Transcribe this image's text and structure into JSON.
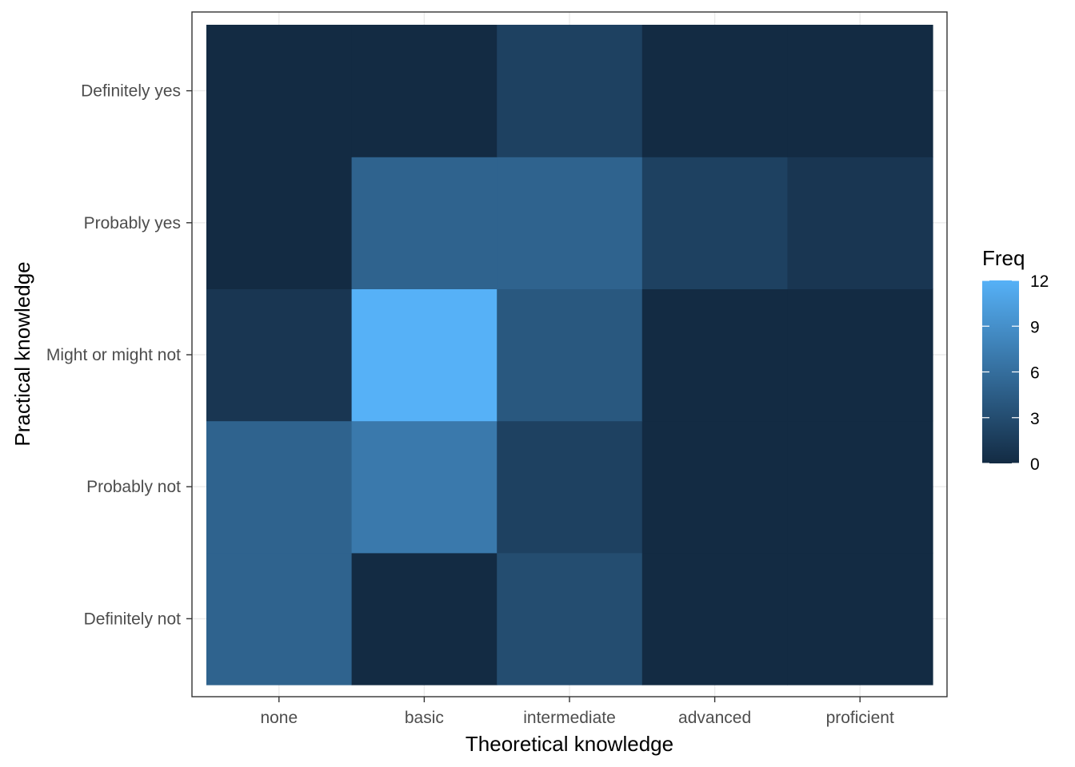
{
  "chart_data": {
    "type": "heatmap",
    "xlabel": "Theoretical knowledge",
    "ylabel": "Practical knowledge",
    "x_categories": [
      "none",
      "basic",
      "intermediate",
      "advanced",
      "proficient"
    ],
    "y_categories": [
      "Definitely not",
      "Probably not",
      "Might or might not",
      "Probably yes",
      "Definitely yes"
    ],
    "values": [
      [
        5,
        0,
        3,
        0,
        0
      ],
      [
        5,
        7,
        2,
        0,
        0
      ],
      [
        1,
        12,
        4,
        0,
        0
      ],
      [
        0,
        5,
        5,
        2,
        1
      ],
      [
        0,
        0,
        2,
        0,
        0
      ]
    ],
    "value_range": [
      0,
      12
    ],
    "color_low": "#132B43",
    "color_high": "#56B1F7",
    "grid": true,
    "legend": {
      "title": "Freq",
      "position": "right",
      "breaks": [
        0,
        3,
        6,
        9,
        12
      ],
      "labels": [
        "0",
        "3",
        "6",
        "9",
        "12"
      ]
    }
  }
}
